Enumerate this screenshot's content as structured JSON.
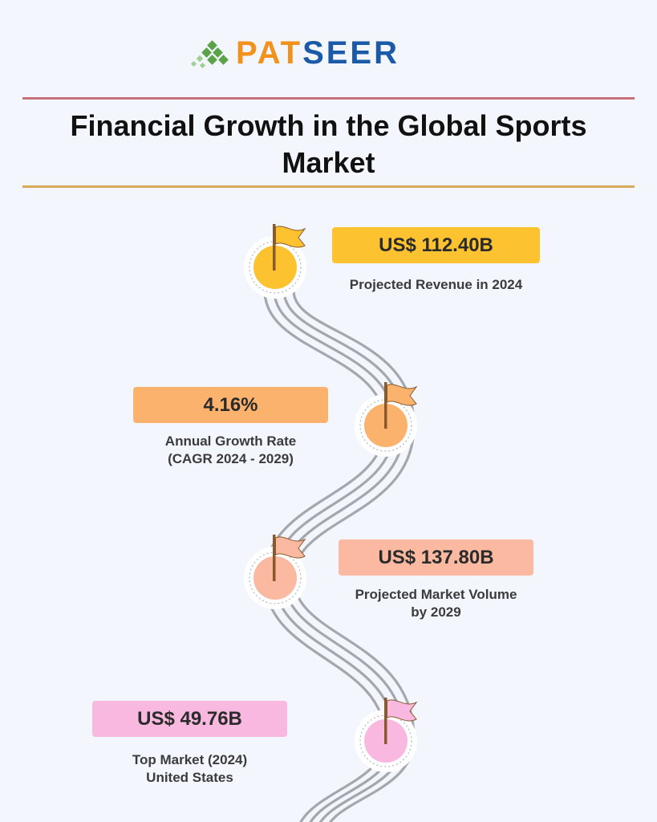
{
  "brand": {
    "part1": "PAT",
    "part2": "SEER"
  },
  "title": "Financial Growth in the Global Sports Market",
  "milestones": [
    {
      "value": "US$ 112.40B",
      "caption_line1": "Projected Revenue in 2024",
      "caption_line2": "",
      "color": "#fdc22f"
    },
    {
      "value": "4.16%",
      "caption_line1": "Annual Growth Rate",
      "caption_line2": "(CAGR 2024 - 2029)",
      "color": "#fbb26c"
    },
    {
      "value": "US$ 137.80B",
      "caption_line1": "Projected Market Volume",
      "caption_line2": "by 2029",
      "color": "#fbb9a1"
    },
    {
      "value": "US$ 49.76B",
      "caption_line1": "Top Market (2024)",
      "caption_line2": "United States",
      "color": "#f8b8df"
    }
  ],
  "colors": {
    "track": "#a4a7ab",
    "pole": "#8a5a2b",
    "rule_top": "#c9707b",
    "rule_bottom": "#d8a95a",
    "logo_green": "#5aa447",
    "logo_orange": "#f0921c",
    "logo_blue": "#1b5aa6"
  }
}
